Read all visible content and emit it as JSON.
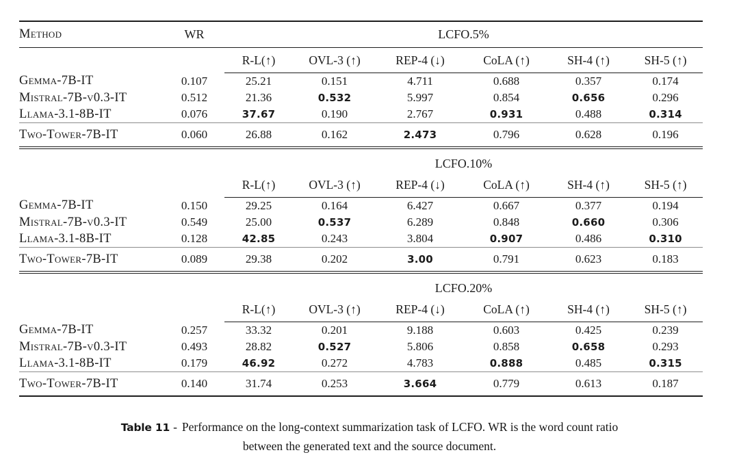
{
  "table": {
    "method_header": "Method",
    "wr_header": "WR",
    "metric_headers": [
      "R-L(↑)",
      "OVL-3 (↑)",
      "REP-4 (↓)",
      "CoLA (↑)",
      "SH-4 (↑)",
      "SH-5 (↑)"
    ],
    "sections": [
      {
        "label": "LCFO.5%",
        "rows": [
          {
            "method": "Gemma-7B-IT",
            "wr": "0.107",
            "values": [
              "25.21",
              "0.151",
              "4.711",
              "0.688",
              "0.357",
              "0.174"
            ],
            "bold": []
          },
          {
            "method": "Mistral-7B-v0.3-IT",
            "wr": "0.512",
            "values": [
              "21.36",
              "0.532",
              "5.997",
              "0.854",
              "0.656",
              "0.296"
            ],
            "bold": [
              1,
              4
            ]
          },
          {
            "method": "Llama-3.1-8B-IT",
            "wr": "0.076",
            "values": [
              "37.67",
              "0.190",
              "2.767",
              "0.931",
              "0.488",
              "0.314"
            ],
            "bold": [
              0,
              3,
              5
            ]
          }
        ],
        "baseline": {
          "method": "Two-Tower-7B-IT",
          "wr": "0.060",
          "values": [
            "26.88",
            "0.162",
            "2.473",
            "0.796",
            "0.628",
            "0.196"
          ],
          "bold": [
            2
          ]
        }
      },
      {
        "label": "LCFO.10%",
        "rows": [
          {
            "method": "Gemma-7B-IT",
            "wr": "0.150",
            "values": [
              "29.25",
              "0.164",
              "6.427",
              "0.667",
              "0.377",
              "0.194"
            ],
            "bold": []
          },
          {
            "method": "Mistral-7B-v0.3-IT",
            "wr": "0.549",
            "values": [
              "25.00",
              "0.537",
              "6.289",
              "0.848",
              "0.660",
              "0.306"
            ],
            "bold": [
              1,
              4
            ]
          },
          {
            "method": "Llama-3.1-8B-IT",
            "wr": "0.128",
            "values": [
              "42.85",
              "0.243",
              "3.804",
              "0.907",
              "0.486",
              "0.310"
            ],
            "bold": [
              0,
              3,
              5
            ]
          }
        ],
        "baseline": {
          "method": "Two-Tower-7B-IT",
          "wr": "0.089",
          "values": [
            "29.38",
            "0.202",
            "3.00",
            "0.791",
            "0.623",
            "0.183"
          ],
          "bold": [
            2
          ]
        }
      },
      {
        "label": "LCFO.20%",
        "rows": [
          {
            "method": "Gemma-7B-IT",
            "wr": "0.257",
            "values": [
              "33.32",
              "0.201",
              "9.188",
              "0.603",
              "0.425",
              "0.239"
            ],
            "bold": []
          },
          {
            "method": "Mistral-7B-v0.3-IT",
            "wr": "0.493",
            "values": [
              "28.82",
              "0.527",
              "5.806",
              "0.858",
              "0.658",
              "0.293"
            ],
            "bold": [
              1,
              4
            ]
          },
          {
            "method": "Llama-3.1-8B-IT",
            "wr": "0.179",
            "values": [
              "46.92",
              "0.272",
              "4.783",
              "0.888",
              "0.485",
              "0.315"
            ],
            "bold": [
              0,
              3,
              5
            ]
          }
        ],
        "baseline": {
          "method": "Two-Tower-7B-IT",
          "wr": "0.140",
          "values": [
            "31.74",
            "0.253",
            "3.664",
            "0.779",
            "0.613",
            "0.187"
          ],
          "bold": [
            2
          ]
        }
      }
    ]
  },
  "caption": {
    "label": "Table 11",
    "separator": "-",
    "line1": "Performance on the long-context summarization task of LCFO. WR is the word count ratio",
    "line2": "between the generated text and the source document."
  }
}
